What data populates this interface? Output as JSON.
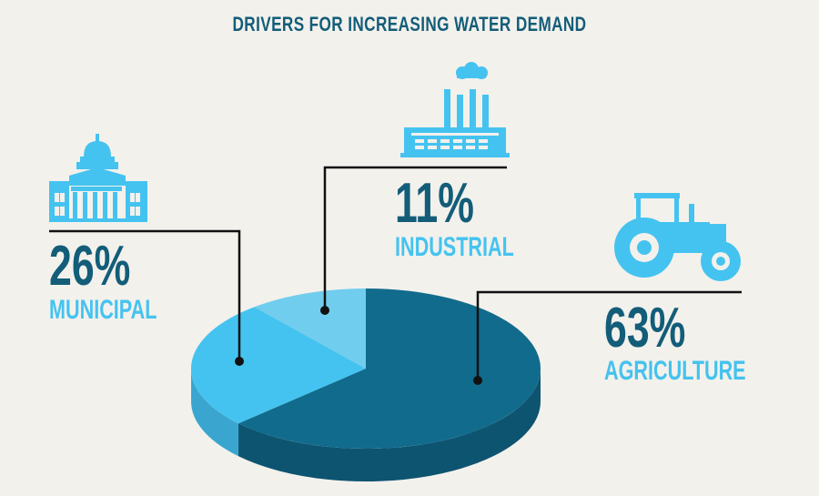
{
  "chart_data": {
    "type": "pie",
    "title": "DRIVERS FOR INCREASING WATER DEMAND",
    "slices": [
      {
        "label": "AGRICULTURE",
        "value": 63,
        "value_label": "63%",
        "color": "#116b8c",
        "side_color": "#0d5471",
        "text_color": "#44c2ee",
        "icon": "tractor-icon"
      },
      {
        "label": "MUNICIPAL",
        "value": 26,
        "value_label": "26%",
        "color": "#45c3f0",
        "side_color": "#3aa6d0",
        "text_color": "#45c3f0",
        "icon": "capitol-building-icon"
      },
      {
        "label": "INDUSTRIAL",
        "value": 11,
        "value_label": "11%",
        "color": "#71cdee",
        "side_color": "#5bb5d8",
        "text_color": "#45c3f0",
        "icon": "factory-icon"
      }
    ]
  },
  "colors": {
    "background": "#f3f1ec",
    "title": "#135d79",
    "percent_text": "#135d79",
    "icon": "#45c3f0",
    "leader_line": "#111111"
  }
}
